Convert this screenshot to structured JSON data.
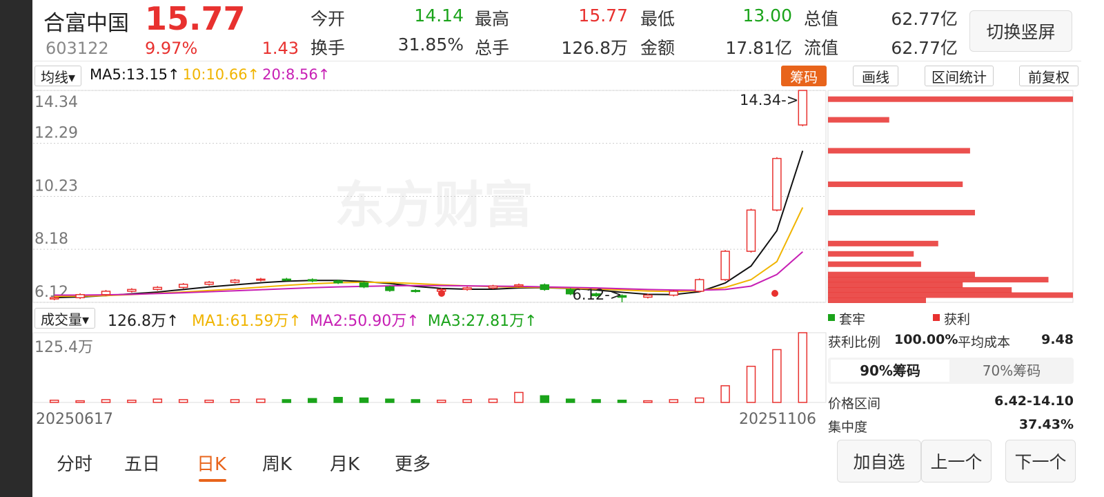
{
  "header": {
    "name": "合富中国",
    "price": "15.77",
    "code": "603122",
    "change_pct": "9.97%",
    "change": "1.43",
    "stats": [
      [
        "今开",
        "14.14"
      ],
      [
        "最高",
        "15.77"
      ],
      [
        "最低",
        "13.00"
      ],
      [
        "总值",
        "62.77亿"
      ],
      [
        "换手",
        "31.85%"
      ],
      [
        "总手",
        "126.8万"
      ],
      [
        "金额",
        "17.81亿"
      ],
      [
        "流值",
        "62.77亿"
      ]
    ],
    "button": "切换竖屏"
  },
  "toolbar": {
    "ma_select": "均线▾",
    "right": [
      "筹码",
      "画线",
      "区间统计",
      "前复权"
    ]
  },
  "watermark": "东方财富",
  "chart_data": {
    "type": "candlestick",
    "categories": [
      "20250617",
      null,
      null,
      null,
      null,
      null,
      null,
      null,
      null,
      null,
      null,
      null,
      null,
      null,
      null,
      null,
      null,
      null,
      null,
      null,
      null,
      null,
      null,
      null,
      null,
      null,
      null,
      null,
      null,
      "20251106"
    ],
    "open": [
      6.25,
      6.3,
      6.42,
      6.55,
      6.62,
      6.7,
      6.82,
      6.9,
      6.98,
      7.02,
      7.0,
      6.95,
      6.88,
      6.72,
      6.58,
      6.55,
      6.62,
      6.68,
      6.75,
      6.8,
      6.62,
      6.45,
      6.38,
      6.32,
      6.4,
      6.55,
      7.0,
      8.1,
      9.7,
      13.0
    ],
    "high": [
      6.35,
      6.47,
      6.6,
      6.67,
      6.75,
      6.87,
      6.95,
      7.03,
      7.07,
      7.07,
      7.05,
      7.0,
      6.93,
      6.77,
      6.63,
      6.67,
      6.73,
      6.8,
      6.85,
      6.85,
      6.67,
      6.5,
      6.43,
      6.45,
      6.6,
      7.05,
      8.15,
      9.75,
      11.75,
      14.34
    ],
    "low": [
      6.2,
      6.25,
      6.37,
      6.5,
      6.57,
      6.65,
      6.77,
      6.85,
      6.93,
      6.95,
      6.9,
      6.83,
      6.67,
      6.53,
      6.5,
      6.5,
      6.57,
      6.63,
      6.7,
      6.57,
      6.4,
      6.33,
      6.12,
      6.27,
      6.35,
      6.5,
      6.95,
      8.05,
      9.65,
      12.95
    ],
    "close": [
      6.3,
      6.42,
      6.55,
      6.62,
      6.7,
      6.82,
      6.9,
      6.98,
      7.02,
      7.0,
      6.95,
      6.88,
      6.72,
      6.58,
      6.55,
      6.62,
      6.68,
      6.75,
      6.8,
      6.62,
      6.45,
      6.38,
      6.32,
      6.4,
      6.55,
      7.0,
      8.1,
      9.7,
      11.7,
      14.34
    ],
    "up_color": "#e8312f",
    "down_color": "#1aa31a",
    "series": [
      {
        "name": "MA5:13.15↑",
        "color": "#111111",
        "values": [
          6.3,
          6.33,
          6.38,
          6.45,
          6.52,
          6.62,
          6.72,
          6.8,
          6.88,
          6.94,
          6.97,
          6.97,
          6.93,
          6.85,
          6.74,
          6.66,
          6.63,
          6.63,
          6.68,
          6.69,
          6.66,
          6.6,
          6.51,
          6.43,
          6.42,
          6.53,
          6.87,
          7.53,
          8.9,
          12.0
        ]
      },
      {
        "name": "10:10.66↑",
        "color": "#f0b400",
        "values": [
          6.35,
          6.36,
          6.38,
          6.42,
          6.47,
          6.52,
          6.58,
          6.64,
          6.71,
          6.78,
          6.84,
          6.88,
          6.9,
          6.89,
          6.85,
          6.8,
          6.76,
          6.73,
          6.71,
          6.7,
          6.67,
          6.64,
          6.6,
          6.56,
          6.54,
          6.57,
          6.7,
          7.0,
          7.7,
          9.8
        ]
      },
      {
        "name": "20:8.56↑",
        "color": "#c71fb4",
        "values": [
          6.4,
          6.4,
          6.41,
          6.43,
          6.46,
          6.49,
          6.53,
          6.57,
          6.61,
          6.65,
          6.69,
          6.72,
          6.74,
          6.76,
          6.77,
          6.77,
          6.76,
          6.75,
          6.74,
          6.72,
          6.7,
          6.68,
          6.65,
          6.62,
          6.6,
          6.59,
          6.62,
          6.75,
          7.2,
          8.08
        ]
      }
    ],
    "ylim": [
      6.12,
      14.34
    ],
    "yticks": [
      6.12,
      8.18,
      10.23,
      12.29,
      14.34
    ],
    "grid": true,
    "annotations": [
      "14.34->",
      "6.12->"
    ],
    "volume": {
      "select": "成交量▾",
      "current": "126.8万↑",
      "legend": [
        {
          "text": "MA1:61.59万↑",
          "color": "#f0b400"
        },
        {
          "text": "MA2:50.90万↑",
          "color": "#c71fb4"
        },
        {
          "text": "MA3:27.81万↑",
          "color": "#1aa31a"
        }
      ],
      "values": [
        4,
        3,
        5,
        4,
        6,
        5,
        4,
        5,
        6,
        5,
        7,
        9,
        8,
        6,
        5,
        4,
        5,
        6,
        18,
        12,
        6,
        5,
        4,
        3,
        5,
        8,
        30,
        65,
        95,
        125.4
      ],
      "ylim": [
        0,
        125.4
      ],
      "yticks": [
        {
          "value": 125.4,
          "label": "125.4万"
        }
      ]
    },
    "chip_distribution": {
      "prices": [
        6.2,
        6.4,
        6.6,
        6.8,
        7.0,
        7.2,
        7.6,
        8.0,
        8.4,
        9.6,
        10.7,
        12.0,
        13.2,
        14.0
      ],
      "values": [
        40,
        100,
        75,
        55,
        90,
        60,
        38,
        35,
        45,
        60,
        55,
        58,
        25,
        100
      ],
      "xlim": [
        0,
        100
      ],
      "color": "#e8312f"
    }
  },
  "chip_panel": {
    "legend": [
      "套牢",
      "获利"
    ],
    "rows": [
      [
        "获利比例",
        "100.00%"
      ],
      [
        "平均成本",
        "9.48"
      ]
    ],
    "tabs": [
      "90%筹码",
      "70%筹码"
    ],
    "rows2": [
      [
        "价格区间",
        "6.42-14.10"
      ],
      [
        "集中度",
        "37.43%"
      ]
    ]
  },
  "tabs": [
    "分时",
    "五日",
    "日K",
    "周K",
    "月K",
    "更多"
  ],
  "buttons": [
    "加自选",
    "上一个",
    "下一个"
  ]
}
